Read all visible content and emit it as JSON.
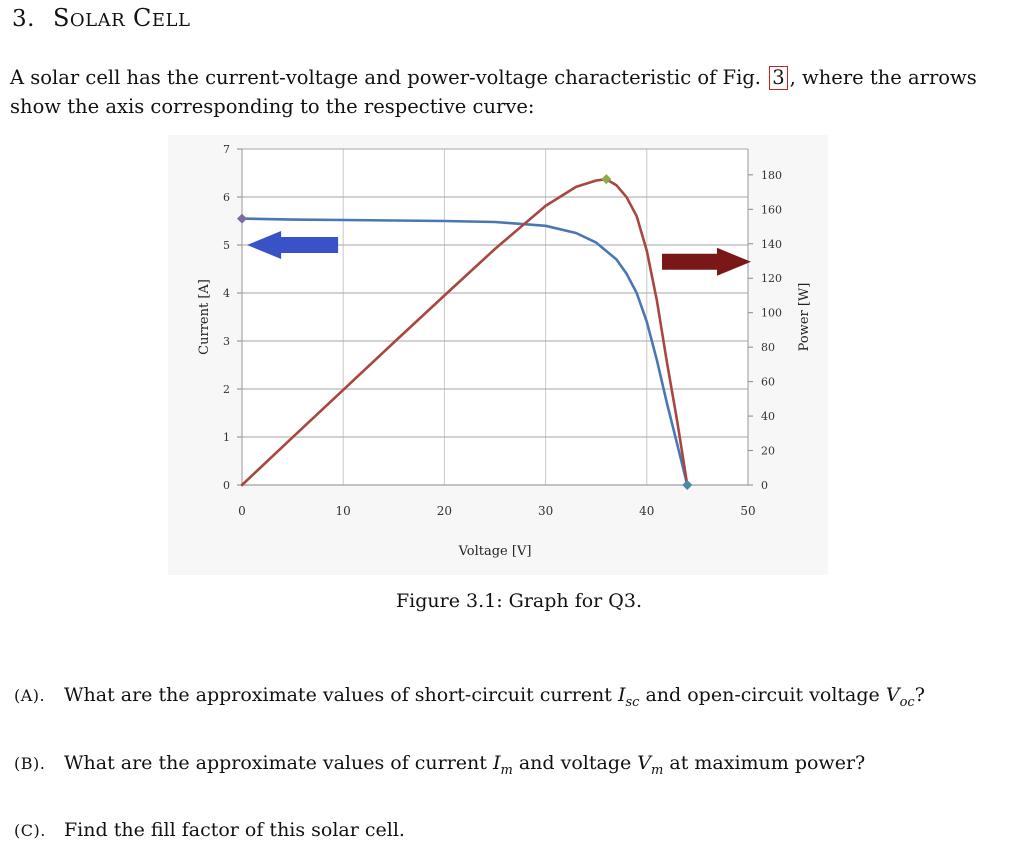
{
  "section": {
    "number": "3.",
    "title_first_letter": "S",
    "title_first_rest": "OLAR",
    "title_second_letter": "C",
    "title_second_rest": "ELL"
  },
  "intro": {
    "before_ref": "A solar cell has the current-voltage and power-voltage characteristic of Fig.",
    "ref": "3",
    "after_ref": ", where the arrows show the axis corresponding to the respective curve:"
  },
  "figure": {
    "caption": "Figure 3.1: Graph for Q3."
  },
  "questions": [
    {
      "tag": "(A).",
      "parts": [
        "What are the approximate values of short-circuit current ",
        "I",
        "sc",
        " and open-circuit voltage ",
        "V",
        "oc",
        "?"
      ]
    },
    {
      "tag": "(B).",
      "parts": [
        "What are the approximate values of current ",
        "I",
        "m",
        " and voltage ",
        "V",
        "m",
        " at maximum power?"
      ]
    },
    {
      "tag": "(C).",
      "text": "Find the fill factor of this solar cell."
    }
  ],
  "chart_data": {
    "type": "line",
    "xlabel": "Voltage [V]",
    "ylabel_left": "Current [A]",
    "ylabel_right": "Power [W]",
    "xlim": [
      0,
      50
    ],
    "ylim_left": [
      0,
      7
    ],
    "ylim_right": [
      0,
      195
    ],
    "x_ticks": [
      "0",
      "10",
      "20",
      "30",
      "40",
      "50"
    ],
    "y_left_ticks": [
      "0",
      "1",
      "2",
      "3",
      "4",
      "5",
      "6",
      "7"
    ],
    "y_right_ticks": [
      "0",
      "20",
      "40",
      "60",
      "80",
      "100",
      "120",
      "140",
      "160",
      "180"
    ],
    "grid": true,
    "series": [
      {
        "axis": "left",
        "color": "#4a77b4",
        "x": [
          0,
          5,
          10,
          15,
          20,
          25,
          30,
          33,
          35,
          37,
          38,
          39,
          40,
          41,
          42,
          43,
          44
        ],
        "y": [
          5.55,
          5.53,
          5.52,
          5.51,
          5.5,
          5.48,
          5.4,
          5.25,
          5.05,
          4.7,
          4.4,
          4.0,
          3.4,
          2.6,
          1.7,
          0.85,
          0
        ]
      },
      {
        "axis": "right",
        "color": "#a84640",
        "x": [
          0,
          5,
          10,
          15,
          20,
          25,
          30,
          33,
          35,
          36,
          37,
          38,
          39,
          40,
          41,
          42,
          43,
          44
        ],
        "y": [
          0,
          27.7,
          55.2,
          82.7,
          110,
          137,
          162,
          173,
          176.7,
          177.5,
          174,
          167,
          156,
          136,
          107,
          71,
          37,
          0
        ]
      }
    ],
    "markers": [
      {
        "x": 0,
        "y": 5.55,
        "axis": "left",
        "color": "#7a6aa6"
      },
      {
        "x": 36,
        "y": 177.5,
        "axis": "right",
        "color": "#8aaa4a"
      },
      {
        "x": 44,
        "y": 0,
        "axis": "left",
        "color": "#4a8aa6"
      }
    ],
    "arrows": [
      {
        "direction": "left",
        "color": "#3a52c8",
        "x_from": 9.5,
        "x_to": 0.5,
        "y": 5.0,
        "axis": "left"
      },
      {
        "direction": "right",
        "color": "#7a1818",
        "x_from": 41.5,
        "x_to": 50.3,
        "y": 4.65,
        "axis": "left"
      }
    ]
  }
}
